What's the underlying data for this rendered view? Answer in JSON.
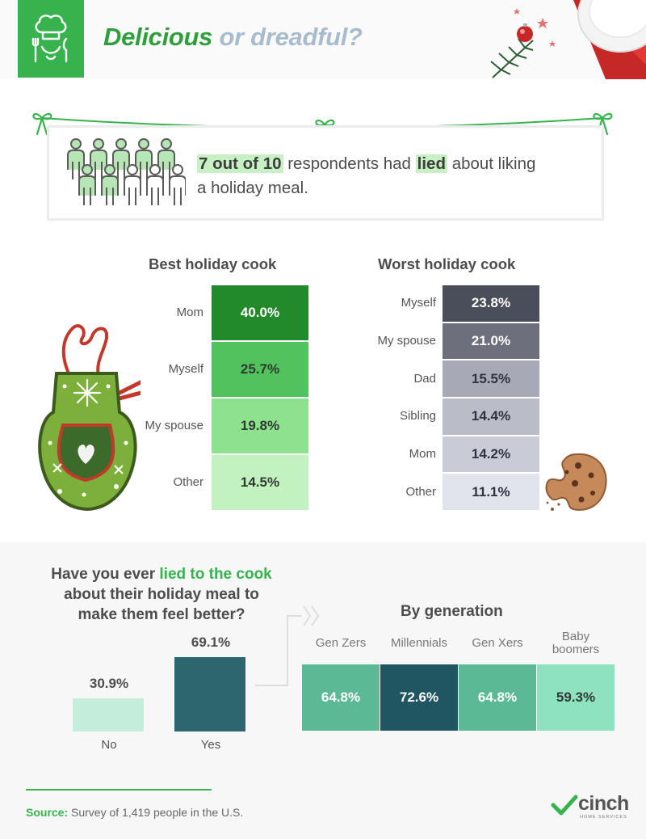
{
  "header": {
    "title_part1": "Delicious",
    "title_part2": "or dreadful?",
    "icon": "chef-hat-utensils-icon",
    "accent_color": "#37b24d"
  },
  "banner": {
    "stat_highlight": "7 out of 10",
    "text_mid": "respondents had",
    "lied_highlight": "lied",
    "text_line1_end": "about liking",
    "text_line2": "a holiday meal.",
    "people_total": 10,
    "people_highlighted": 7
  },
  "chart_data": [
    {
      "type": "bar",
      "title": "Best holiday cook",
      "categories": [
        "Mom",
        "Myself",
        "My spouse",
        "Other"
      ],
      "values": [
        40.0,
        25.7,
        19.8,
        14.5
      ],
      "value_labels": [
        "40.0%",
        "25.7%",
        "19.8%",
        "14.5%"
      ],
      "colors": [
        "#238a2b",
        "#52c25c",
        "#8ee28f",
        "#c2f2c0"
      ]
    },
    {
      "type": "bar",
      "title": "Worst holiday cook",
      "categories": [
        "Myself",
        "My spouse",
        "Dad",
        "Sibling",
        "Mom",
        "Other"
      ],
      "values": [
        23.8,
        21.0,
        15.5,
        14.4,
        14.2,
        11.1
      ],
      "value_labels": [
        "23.8%",
        "21.0%",
        "15.5%",
        "14.4%",
        "14.2%",
        "11.1%"
      ],
      "colors": [
        "#4a4d5a",
        "#6d707c",
        "#a7aab6",
        "#babdc8",
        "#c9ccd6",
        "#e2e4ec"
      ]
    },
    {
      "type": "bar",
      "title": "",
      "categories": [
        "No",
        "Yes"
      ],
      "values": [
        30.9,
        69.1
      ],
      "value_labels": [
        "30.9%",
        "69.1%"
      ],
      "colors": [
        "#c4eedb",
        "#2e6670"
      ]
    },
    {
      "type": "bar",
      "title": "By generation",
      "categories": [
        "Gen Zers",
        "Millennials",
        "Gen Xers",
        "Baby boomers"
      ],
      "category_lines": [
        [
          "Gen Zers"
        ],
        [
          "Millennials"
        ],
        [
          "Gen Xers"
        ],
        [
          "Baby",
          "boomers"
        ]
      ],
      "values": [
        64.8,
        72.6,
        64.8,
        59.3
      ],
      "value_labels": [
        "64.8%",
        "72.6%",
        "64.8%",
        "59.3%"
      ],
      "colors": [
        "#5bba95",
        "#1f5662",
        "#5bba95",
        "#8ee2c0"
      ]
    }
  ],
  "question": {
    "line1_start": "Have you ever",
    "line1_highlight": "lied to the cook",
    "line2": "about their holiday meal to",
    "line3": "make them feel better?"
  },
  "footer": {
    "source_label": "Source:",
    "source_text": "Survey of 1,419 people in the U.S.",
    "brand_name": "cinch",
    "brand_sub": "HOME SERVICES"
  }
}
